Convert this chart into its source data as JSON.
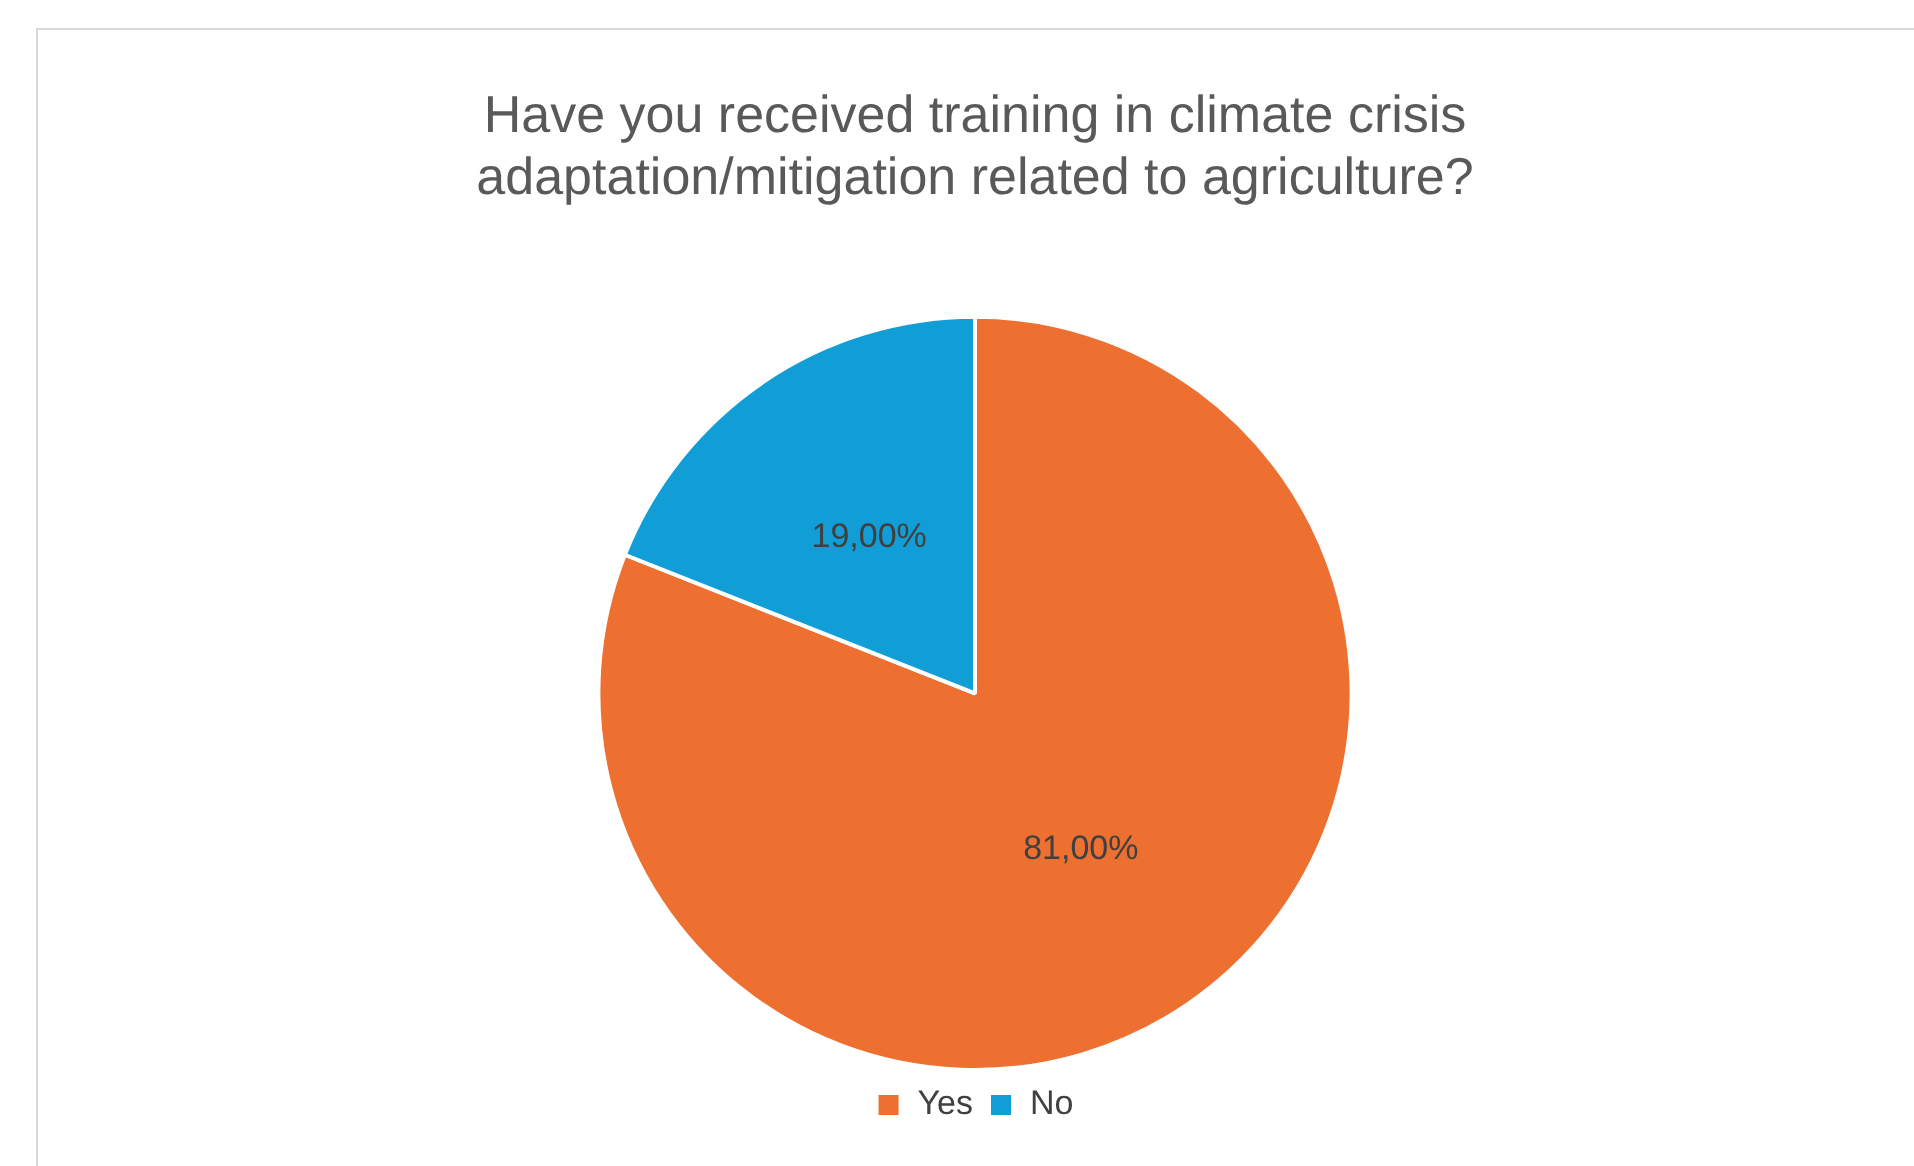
{
  "chart_data": {
    "type": "pie",
    "title": [
      "Have you received training in climate crisis",
      "adaptation/mitigation related to agriculture?"
    ],
    "categories": [
      "Yes",
      "No"
    ],
    "values": [
      81,
      19
    ],
    "colors": [
      "#ed7031",
      "#119ed6"
    ],
    "value_labels": [
      "81,00%",
      "19,00%"
    ],
    "legend": "bottom"
  }
}
